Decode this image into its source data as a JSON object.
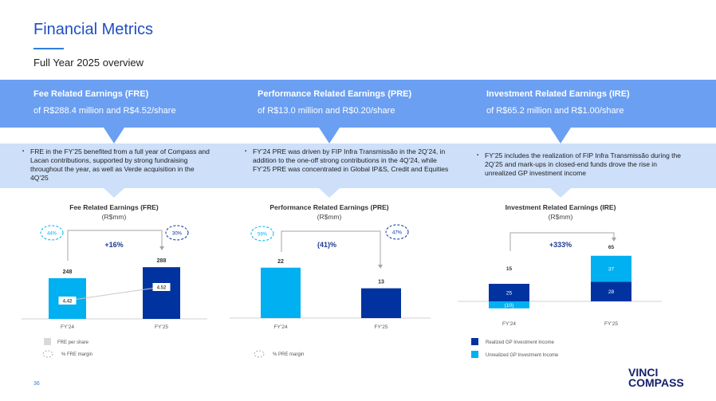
{
  "title": "Financial Metrics",
  "subtitle": "Full Year 2025  overview",
  "sections": [
    {
      "heading": "Fee Related Earnings (FRE)",
      "summary": "of R$288.4 million and R$4.52/share",
      "note": "FRE in the FY’25 benefited from a full year of Compass and Lacan contributions,  supported by strong fundraising throughout the year, as well as Verde acquisition in the 4Q’25"
    },
    {
      "heading": "Performance Related Earnings (PRE)",
      "summary": "of R$13.0 million and R$0.20/share",
      "note": "FY’24 PRE was driven by FIP Infra Transmissão in the 2Q’24, in addition to the one-off strong contributions  in the 4Q’24, while FY’25 PRE was concentrated in Global IP&S, Credit and Equities"
    },
    {
      "heading": "Investment Related Earnings (IRE)",
      "summary": "of R$65.2 million and R$1.00/share",
      "note": "FY’25 includes the realization of FIP Infra Transmissão during the 2Q’25 and mark-ups in closed-end funds drove the rise in unrealized GP investment income"
    }
  ],
  "colors": {
    "light": "#00b0f0",
    "dark": "#0033a0",
    "gray": "#bfbfbf"
  },
  "chart_data": [
    {
      "type": "bar",
      "title": "Fee Related Earnings (FRE)",
      "unit": "(R$mm)",
      "categories": [
        "FY’24",
        "FY’25"
      ],
      "values": [
        248,
        288
      ],
      "value_labels": [
        "248",
        "288"
      ],
      "per_share": [
        4.42,
        4.52
      ],
      "per_share_labels": [
        "4.42",
        "4.52"
      ],
      "margins": [
        "44%",
        "30%"
      ],
      "growth": "+16%",
      "ylim": [
        100,
        300
      ],
      "legend": [
        "FRE per share",
        "% FRE margin"
      ]
    },
    {
      "type": "bar",
      "title": "Performance Related Earnings (PRE)",
      "unit": "(R$mm)",
      "categories": [
        "FY’24",
        "FY’25"
      ],
      "values": [
        22,
        13
      ],
      "value_labels": [
        "22",
        "13"
      ],
      "margins": [
        "59%",
        "47%"
      ],
      "growth": "(41)%",
      "ylim": [
        0,
        24
      ],
      "legend": [
        "% PRE margin"
      ]
    },
    {
      "type": "bar",
      "stacked": true,
      "title": "Investment  Related  Earnings (IRE)",
      "unit": "(R$mm)",
      "categories": [
        "FY’24",
        "FY’25"
      ],
      "series": [
        {
          "name": "Realized  GP  Investment  Income",
          "values": [
            25,
            28
          ],
          "labels": [
            "25",
            "28"
          ]
        },
        {
          "name": "Unrealized  GP Investment  Income",
          "values": [
            -10,
            37
          ],
          "labels": [
            "(10)",
            "37"
          ]
        }
      ],
      "totals": [
        "15",
        "65"
      ],
      "growth": "+333%",
      "ylim": [
        -12,
        70
      ]
    }
  ],
  "page_number": "36",
  "logo": {
    "line1": "VINCI",
    "line2": "COMPASS"
  }
}
